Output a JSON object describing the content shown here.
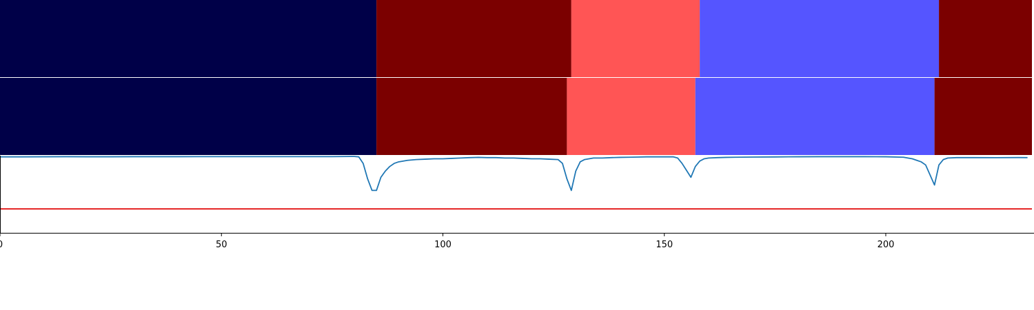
{
  "chart_data": [
    {
      "type": "heatmap",
      "panel": "top-row-1",
      "segments": [
        {
          "start": 0,
          "end": 85,
          "color": "#000048"
        },
        {
          "start": 85,
          "end": 129,
          "color": "#7b0000"
        },
        {
          "start": 129,
          "end": 158,
          "color": "#ff5555"
        },
        {
          "start": 158,
          "end": 212,
          "color": "#5555ff"
        },
        {
          "start": 212,
          "end": 233,
          "color": "#7b0000"
        }
      ]
    },
    {
      "type": "heatmap",
      "panel": "top-row-2",
      "segments": [
        {
          "start": 0,
          "end": 85,
          "color": "#000048"
        },
        {
          "start": 85,
          "end": 128,
          "color": "#7b0000"
        },
        {
          "start": 128,
          "end": 157,
          "color": "#ff5555"
        },
        {
          "start": 157,
          "end": 211,
          "color": "#5555ff"
        },
        {
          "start": 211,
          "end": 233,
          "color": "#7b0000"
        }
      ]
    },
    {
      "type": "line",
      "panel": "bottom",
      "xlim": [
        0,
        233
      ],
      "ylim": [
        0,
        1
      ],
      "x_ticks": [
        0,
        50,
        100,
        150,
        200
      ],
      "grid": false,
      "threshold": {
        "y": 0.31,
        "color": "#e00000"
      },
      "series_color": "#1f77b4",
      "series": [
        {
          "values": [
            [
              0,
              0.985
            ],
            [
              5,
              0.985
            ],
            [
              10,
              0.986
            ],
            [
              15,
              0.987
            ],
            [
              20,
              0.986
            ],
            [
              25,
              0.986
            ],
            [
              30,
              0.987
            ],
            [
              35,
              0.987
            ],
            [
              40,
              0.987
            ],
            [
              45,
              0.988
            ],
            [
              50,
              0.988
            ],
            [
              55,
              0.988
            ],
            [
              60,
              0.988
            ],
            [
              65,
              0.988
            ],
            [
              70,
              0.988
            ],
            [
              75,
              0.988
            ],
            [
              80,
              0.99
            ],
            [
              81,
              0.985
            ],
            [
              82,
              0.9
            ],
            [
              83,
              0.7
            ],
            [
              84,
              0.55
            ],
            [
              85,
              0.55
            ],
            [
              86,
              0.72
            ],
            [
              87,
              0.8
            ],
            [
              88,
              0.86
            ],
            [
              89,
              0.9
            ],
            [
              90,
              0.92
            ],
            [
              91,
              0.93
            ],
            [
              92,
              0.94
            ],
            [
              94,
              0.95
            ],
            [
              96,
              0.955
            ],
            [
              98,
              0.96
            ],
            [
              100,
              0.96
            ],
            [
              102,
              0.965
            ],
            [
              104,
              0.97
            ],
            [
              106,
              0.975
            ],
            [
              108,
              0.978
            ],
            [
              110,
              0.975
            ],
            [
              112,
              0.975
            ],
            [
              114,
              0.97
            ],
            [
              116,
              0.97
            ],
            [
              118,
              0.965
            ],
            [
              120,
              0.96
            ],
            [
              122,
              0.96
            ],
            [
              124,
              0.955
            ],
            [
              126,
              0.95
            ],
            [
              127,
              0.9
            ],
            [
              128,
              0.7
            ],
            [
              129,
              0.55
            ],
            [
              130,
              0.8
            ],
            [
              131,
              0.92
            ],
            [
              132,
              0.95
            ],
            [
              134,
              0.97
            ],
            [
              136,
              0.97
            ],
            [
              138,
              0.975
            ],
            [
              140,
              0.978
            ],
            [
              142,
              0.98
            ],
            [
              144,
              0.982
            ],
            [
              146,
              0.985
            ],
            [
              148,
              0.985
            ],
            [
              150,
              0.985
            ],
            [
              152,
              0.985
            ],
            [
              153,
              0.97
            ],
            [
              154,
              0.9
            ],
            [
              155,
              0.81
            ],
            [
              156,
              0.72
            ],
            [
              157,
              0.86
            ],
            [
              158,
              0.93
            ],
            [
              159,
              0.96
            ],
            [
              160,
              0.97
            ],
            [
              162,
              0.975
            ],
            [
              164,
              0.978
            ],
            [
              166,
              0.98
            ],
            [
              170,
              0.982
            ],
            [
              175,
              0.984
            ],
            [
              180,
              0.986
            ],
            [
              185,
              0.987
            ],
            [
              190,
              0.987
            ],
            [
              195,
              0.987
            ],
            [
              200,
              0.986
            ],
            [
              204,
              0.98
            ],
            [
              206,
              0.96
            ],
            [
              207,
              0.94
            ],
            [
              208,
              0.92
            ],
            [
              209,
              0.88
            ],
            [
              210,
              0.75
            ],
            [
              211,
              0.62
            ],
            [
              212,
              0.88
            ],
            [
              213,
              0.95
            ],
            [
              214,
              0.97
            ],
            [
              216,
              0.975
            ],
            [
              220,
              0.975
            ],
            [
              225,
              0.974
            ],
            [
              230,
              0.976
            ],
            [
              232,
              0.975
            ]
          ]
        }
      ]
    }
  ]
}
